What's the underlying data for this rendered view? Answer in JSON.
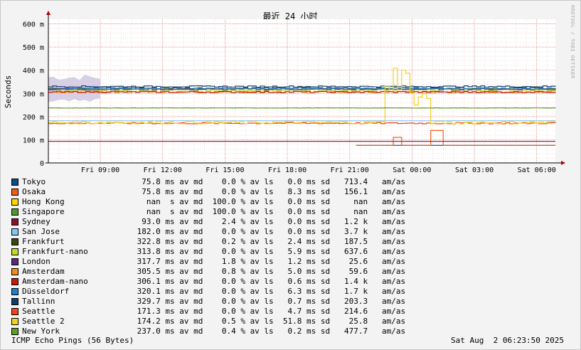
{
  "chart_data": {
    "type": "line",
    "title": "最近 24 小时",
    "ylabel": "Seconds",
    "xlabel": "",
    "ylim": [
      0,
      0.62
    ],
    "y_ticks": [
      {
        "value": 0,
        "label": "0"
      },
      {
        "value": 0.1,
        "label": "100 m"
      },
      {
        "value": 0.2,
        "label": "200 m"
      },
      {
        "value": 0.3,
        "label": "300 m"
      },
      {
        "value": 0.4,
        "label": "400 m"
      },
      {
        "value": 0.5,
        "label": "500 m"
      },
      {
        "value": 0.6,
        "label": "600 m"
      }
    ],
    "x_range_hours": [
      6.5,
      30.9
    ],
    "x_ticks": [
      {
        "hour": 9,
        "label": "Fri 09:00"
      },
      {
        "hour": 12,
        "label": "Fri 12:00"
      },
      {
        "hour": 15,
        "label": "Fri 15:00"
      },
      {
        "hour": 18,
        "label": "Fri 18:00"
      },
      {
        "hour": 21,
        "label": "Fri 21:00"
      },
      {
        "hour": 24,
        "label": "Sat 00:00"
      },
      {
        "hour": 27,
        "label": "Sat 03:00"
      },
      {
        "hour": 30,
        "label": "Sat 06:00"
      }
    ],
    "grid": true,
    "series": [
      {
        "name": "Tokyo",
        "color": "#0d4b8e",
        "median": "75.8 ms",
        "avg_median": 0.0758,
        "loss": "0.0 %",
        "sd": "0.0 ms",
        "ratio": "713.4"
      },
      {
        "name": "Osaka",
        "color": "#f25c19",
        "median": "75.8 ms",
        "avg_median": 0.0758,
        "loss": "0.0 %",
        "sd": "8.3 ms",
        "ratio": "156.1"
      },
      {
        "name": "Hong Kong",
        "color": "#ffd700",
        "median": "nan  s",
        "avg_median": null,
        "loss": "100.0 %",
        "sd": "0.0 ms",
        "ratio": "nan"
      },
      {
        "name": "Singapore",
        "color": "#4d9c2a",
        "median": "nan  s",
        "avg_median": null,
        "loss": "100.0 %",
        "sd": "0.0 ms",
        "ratio": "nan"
      },
      {
        "name": "Sydney",
        "color": "#8b0f2e",
        "median": "93.0 ms",
        "avg_median": 0.093,
        "loss": "2.4 %",
        "sd": "0.0 ms",
        "ratio": "1.2 k"
      },
      {
        "name": "San Jose",
        "color": "#87c5f2",
        "median": "182.0 ms",
        "avg_median": 0.182,
        "loss": "0.0 %",
        "sd": "0.0 ms",
        "ratio": "3.7 k"
      },
      {
        "name": "Frankfurt",
        "color": "#3a4710",
        "median": "322.8 ms",
        "avg_median": 0.3228,
        "loss": "0.2 %",
        "sd": "2.4 ms",
        "ratio": "187.5"
      },
      {
        "name": "Frankfurt-nano",
        "color": "#c6d628",
        "median": "313.8 ms",
        "avg_median": 0.3138,
        "loss": "0.0 %",
        "sd": "5.9 ms",
        "ratio": "637.6"
      },
      {
        "name": "London",
        "color": "#5a2a73",
        "median": "317.7 ms",
        "avg_median": 0.3177,
        "loss": "1.8 %",
        "sd": "1.2 ms",
        "ratio": "25.6"
      },
      {
        "name": "Amsterdam",
        "color": "#f28b1c",
        "median": "305.5 ms",
        "avg_median": 0.3055,
        "loss": "0.8 %",
        "sd": "5.0 ms",
        "ratio": "59.6"
      },
      {
        "name": "Amsterdam-nano",
        "color": "#c4190f",
        "median": "306.1 ms",
        "avg_median": 0.3061,
        "loss": "0.0 %",
        "sd": "0.6 ms",
        "ratio": "1.4 k"
      },
      {
        "name": "Düsseldorf",
        "color": "#1f80c8",
        "median": "320.1 ms",
        "avg_median": 0.3201,
        "loss": "0.0 %",
        "sd": "6.3 ms",
        "ratio": "1.7 k"
      },
      {
        "name": "Tallinn",
        "color": "#0f3f6e",
        "median": "329.7 ms",
        "avg_median": 0.3297,
        "loss": "0.0 %",
        "sd": "0.7 ms",
        "ratio": "203.3"
      },
      {
        "name": "Seattle",
        "color": "#f2431c",
        "median": "171.3 ms",
        "avg_median": 0.1713,
        "loss": "0.0 %",
        "sd": "4.7 ms",
        "ratio": "214.6"
      },
      {
        "name": "Seattle 2",
        "color": "#f2d21c",
        "median": "174.2 ms",
        "avg_median": 0.1742,
        "loss": "0.5 %",
        "sd": "51.8 ms",
        "ratio": "25.8"
      },
      {
        "name": "New York",
        "color": "#5d9e2a",
        "median": "237.0 ms",
        "avg_median": 0.237,
        "loss": "0.4 %",
        "sd": "0.2 ms",
        "ratio": "477.7"
      }
    ],
    "unit_labels": {
      "median": "av md",
      "loss": "av ls",
      "sd": "sd",
      "ratio": "am/as"
    }
  },
  "footer": {
    "left": "ICMP Echo Pings (56 Bytes)",
    "right": "Sat Aug  2 06:23:50 2025"
  },
  "sidebar_text": "RRDTOOL / TOBI OETIKER"
}
